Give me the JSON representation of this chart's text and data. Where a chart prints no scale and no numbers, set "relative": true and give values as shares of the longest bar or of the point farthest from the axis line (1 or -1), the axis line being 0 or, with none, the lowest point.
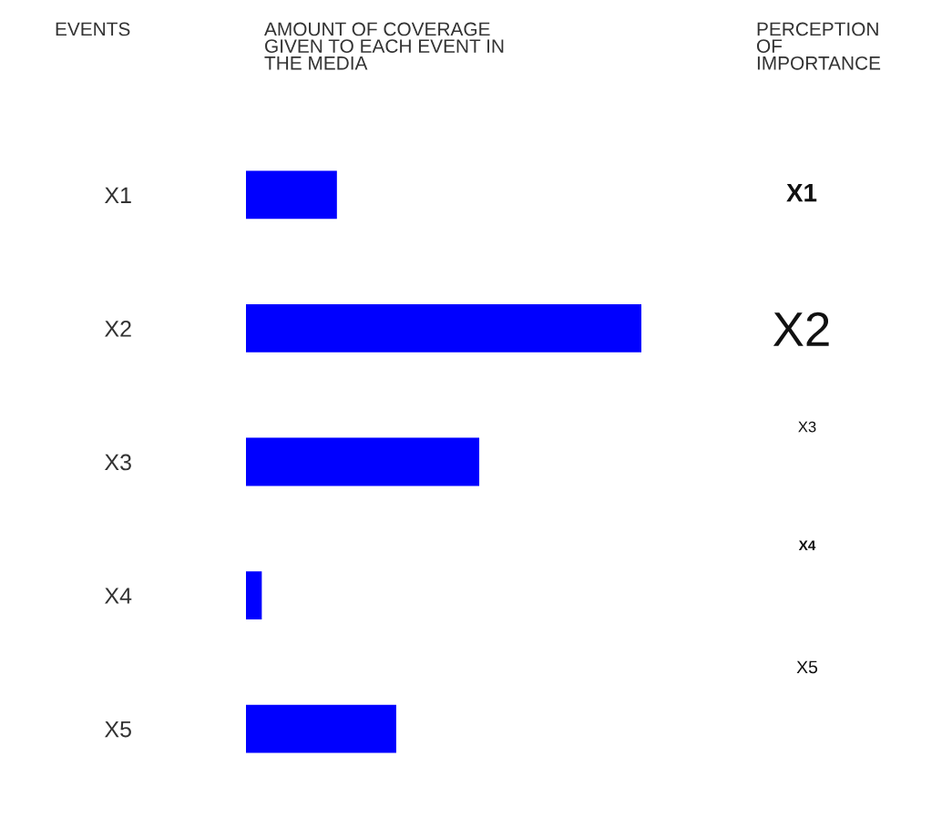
{
  "chart_data": {
    "type": "bar",
    "orientation": "horizontal",
    "relative": true,
    "title": "AMOUNT OF COVERAGE\nGIVEN TO EACH EVENT IN\nTHE MEDIA",
    "ylabel": "EVENTS",
    "categories": [
      "X1",
      "X2",
      "X3",
      "X4",
      "X5"
    ],
    "values": [
      0.23,
      1,
      0.59,
      0.04,
      0.38
    ],
    "color": "#0000ff",
    "annotations": [
      "PERCEPTION\nOF\nIMPORTANCE",
      "X1",
      "X2",
      "X3",
      "X4",
      "X5"
    ],
    "grid": false,
    "legend": false
  }
}
